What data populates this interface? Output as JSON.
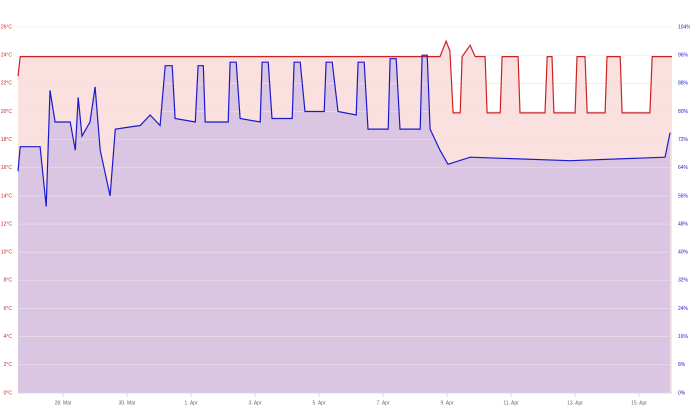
{
  "chart_data": {
    "type": "line",
    "xlim": [
      -1.41,
      19.03
    ],
    "xticks": [
      {
        "value": 0,
        "label": "28. Mar"
      },
      {
        "value": 2,
        "label": "30. Mar"
      },
      {
        "value": 4,
        "label": "1. Apr"
      },
      {
        "value": 6,
        "label": "3. Apr"
      },
      {
        "value": 8,
        "label": "5. Apr"
      },
      {
        "value": 10,
        "label": "7. Apr"
      },
      {
        "value": 12,
        "label": "9. Apr"
      },
      {
        "value": 14,
        "label": "11. Apr"
      },
      {
        "value": 16,
        "label": "13. Apr"
      },
      {
        "value": 18,
        "label": "15. Apr"
      }
    ],
    "ylim": [
      0,
      26
    ],
    "yticks": [
      {
        "value": 0,
        "label": "0°C"
      },
      {
        "value": 2,
        "label": "2°C"
      },
      {
        "value": 4,
        "label": "4°C"
      },
      {
        "value": 6,
        "label": "6°C"
      },
      {
        "value": 8,
        "label": "8°C"
      },
      {
        "value": 10,
        "label": "10°C"
      },
      {
        "value": 12,
        "label": "12°C"
      },
      {
        "value": 14,
        "label": "14°C"
      },
      {
        "value": 16,
        "label": "16°C"
      },
      {
        "value": 18,
        "label": "18°C"
      },
      {
        "value": 20,
        "label": "20°C"
      },
      {
        "value": 22,
        "label": "22°C"
      },
      {
        "value": 24,
        "label": "24°C"
      },
      {
        "value": 26,
        "label": "26°C"
      }
    ],
    "y2lim": [
      0,
      104
    ],
    "y2ticks": [
      {
        "value": 0,
        "label": "0%"
      },
      {
        "value": 8,
        "label": "8%"
      },
      {
        "value": 16,
        "label": "16%"
      },
      {
        "value": 24,
        "label": "24%"
      },
      {
        "value": 32,
        "label": "32%"
      },
      {
        "value": 40,
        "label": "40%"
      },
      {
        "value": 48,
        "label": "48%"
      },
      {
        "value": 56,
        "label": "56%"
      },
      {
        "value": 64,
        "label": "64%"
      },
      {
        "value": 72,
        "label": "72%"
      },
      {
        "value": 80,
        "label": "80%"
      },
      {
        "value": 88,
        "label": "88%"
      },
      {
        "value": 96,
        "label": "96%"
      },
      {
        "value": 104,
        "label": "104%"
      }
    ],
    "grid": true,
    "series": [
      {
        "color": "#cc2222",
        "fill": "#fbe0e0",
        "x": [
          -1.41,
          -1.34,
          11.78,
          11.97,
          12.09,
          12.19,
          12.41,
          12.47,
          12.72,
          12.88,
          13.19,
          13.25,
          13.66,
          13.72,
          14.22,
          14.28,
          15.06,
          15.13,
          15.28,
          15.34,
          16,
          16.06,
          16.31,
          16.38,
          16.94,
          17,
          17.41,
          17.47,
          18.34,
          18.41,
          19.03
        ],
        "values": [
          22.5,
          23.9,
          23.9,
          25.0,
          24.3,
          19.9,
          19.9,
          23.9,
          24.7,
          23.9,
          23.9,
          19.9,
          19.9,
          23.9,
          23.9,
          19.9,
          19.9,
          23.9,
          23.9,
          19.9,
          19.9,
          23.9,
          23.9,
          19.9,
          19.9,
          23.9,
          23.9,
          19.9,
          19.9,
          23.9,
          23.9
        ]
      },
      {
        "color": "#1a1acc",
        "fill": "#dac6e2",
        "axis": "y2",
        "x": [
          -1.41,
          -1.34,
          -0.72,
          -0.53,
          -0.41,
          -0.25,
          0.22,
          0.38,
          0.47,
          0.59,
          0.84,
          1,
          1.16,
          1.47,
          1.63,
          2.41,
          2.72,
          3.03,
          3.19,
          3.41,
          3.5,
          4.13,
          4.22,
          4.38,
          4.44,
          5.16,
          5.22,
          5.41,
          5.53,
          6.16,
          6.22,
          6.41,
          6.53,
          7.16,
          7.22,
          7.41,
          7.56,
          8.16,
          8.22,
          8.41,
          8.59,
          9.16,
          9.22,
          9.41,
          9.53,
          10.16,
          10.22,
          10.41,
          10.53,
          11.16,
          11.22,
          11.38,
          11.47,
          11.78,
          12.03,
          12.72,
          15.84,
          18.81,
          18.97
        ],
        "values": [
          63,
          70,
          70,
          53,
          86,
          77,
          77,
          69,
          84,
          73,
          77,
          87,
          69,
          56,
          75,
          76,
          79,
          76,
          93,
          93,
          78,
          77,
          93,
          93,
          77,
          77,
          94,
          94,
          78,
          77,
          94,
          94,
          78,
          78,
          94,
          94,
          80,
          80,
          94,
          94,
          80,
          79,
          94,
          94,
          75,
          75,
          95,
          95,
          75,
          75,
          96,
          96,
          75,
          69,
          65,
          67,
          66,
          67,
          74
        ]
      }
    ]
  }
}
